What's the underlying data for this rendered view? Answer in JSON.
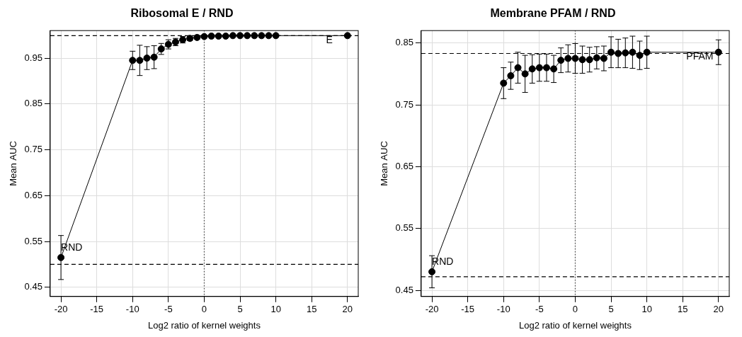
{
  "chart_data": [
    {
      "type": "line",
      "title": "Ribosomal E / RND",
      "x_label": "Log2 ratio of kernel weights",
      "y_label": "Mean AUC",
      "x": [
        -20,
        -10,
        -9,
        -8,
        -7,
        -6,
        -5,
        -4,
        -3,
        -2,
        -1,
        0,
        1,
        2,
        3,
        4,
        5,
        6,
        7,
        8,
        9,
        10,
        20
      ],
      "values": [
        0.515,
        0.945,
        0.945,
        0.95,
        0.952,
        0.97,
        0.98,
        0.985,
        0.99,
        0.993,
        0.995,
        0.997,
        0.998,
        0.998,
        0.998,
        0.999,
        0.999,
        0.999,
        0.999,
        0.999,
        0.999,
        0.999,
        0.999
      ],
      "errors": [
        0.048,
        0.02,
        0.033,
        0.025,
        0.025,
        0.012,
        0.01,
        0.008,
        0.007,
        0.005,
        0.004,
        0.003,
        0.002,
        0.002,
        0.002,
        0.001,
        0.001,
        0.001,
        0.001,
        0.001,
        0.001,
        0.001,
        0.001
      ],
      "color": "#000000",
      "marker": "circle",
      "line_style": "solid",
      "xlim": [
        -21.5,
        21.5
      ],
      "xticks": [
        -20,
        -15,
        -10,
        -5,
        0,
        5,
        10,
        15,
        20
      ],
      "ylim": [
        0.43,
        1.01
      ],
      "yticks": [
        0.45,
        0.55,
        0.65,
        0.75,
        0.85,
        0.95
      ],
      "reference_lines": [
        {
          "y": 0.999,
          "line_style": "dashed"
        },
        {
          "y": 0.5,
          "line_style": "dashed"
        }
      ],
      "vertical_line": {
        "x": 0,
        "line_style": "dotted"
      },
      "annotations": [
        {
          "text": "RND",
          "x": -20,
          "y": 0.525
        },
        {
          "text": "E",
          "x": 17,
          "y": 0.978
        }
      ],
      "grid": true
    },
    {
      "type": "line",
      "title": "Membrane PFAM / RND",
      "x_label": "Log2 ratio of kernel weights",
      "y_label": "Mean AUC",
      "x": [
        -20,
        -10,
        -9,
        -8,
        -7,
        -6,
        -5,
        -4,
        -3,
        -2,
        -1,
        0,
        1,
        2,
        3,
        4,
        5,
        6,
        7,
        8,
        9,
        10,
        20
      ],
      "values": [
        0.48,
        0.785,
        0.797,
        0.81,
        0.8,
        0.808,
        0.81,
        0.81,
        0.808,
        0.822,
        0.825,
        0.825,
        0.823,
        0.823,
        0.826,
        0.825,
        0.835,
        0.833,
        0.834,
        0.835,
        0.83,
        0.835,
        0.835
      ],
      "errors": [
        0.026,
        0.025,
        0.022,
        0.025,
        0.03,
        0.023,
        0.022,
        0.022,
        0.022,
        0.02,
        0.022,
        0.024,
        0.022,
        0.02,
        0.018,
        0.02,
        0.025,
        0.023,
        0.024,
        0.026,
        0.023,
        0.026,
        0.02
      ],
      "color": "#000000",
      "marker": "circle",
      "line_style": "solid",
      "xlim": [
        -21.5,
        21.5
      ],
      "xticks": [
        -20,
        -15,
        -10,
        -5,
        0,
        5,
        10,
        15,
        20
      ],
      "ylim": [
        0.44,
        0.87
      ],
      "yticks": [
        0.45,
        0.55,
        0.65,
        0.75,
        0.85
      ],
      "reference_lines": [
        {
          "y": 0.833,
          "line_style": "dashed"
        },
        {
          "y": 0.472,
          "line_style": "dashed"
        }
      ],
      "vertical_line": {
        "x": 0,
        "line_style": "dotted"
      },
      "annotations": [
        {
          "text": "RND",
          "x": -20,
          "y": 0.488
        },
        {
          "text": "PFAM",
          "x": 15.5,
          "y": 0.82
        }
      ],
      "grid": true
    }
  ]
}
